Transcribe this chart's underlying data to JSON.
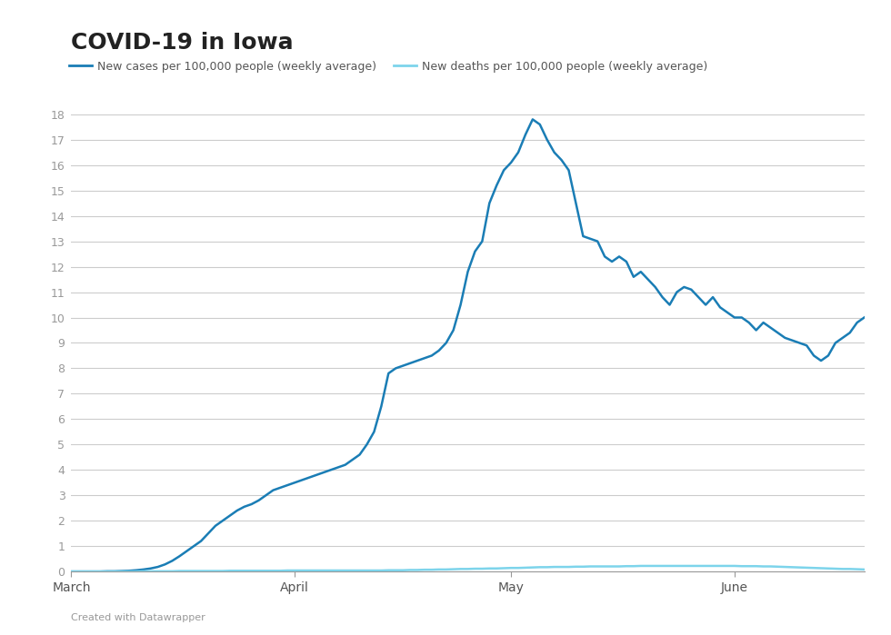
{
  "title": "COVID-19 in Iowa",
  "legend_cases": "New cases per 100,000 people (weekly average)",
  "legend_deaths": "New deaths per 100,000 people (weekly average)",
  "footer": "Created with Datawrapper",
  "cases_color": "#1a7db5",
  "deaths_color": "#7dd4eb",
  "background_color": "#ffffff",
  "ylim": [
    0,
    18
  ],
  "yticks": [
    0,
    1,
    2,
    3,
    4,
    5,
    6,
    7,
    8,
    9,
    10,
    11,
    12,
    13,
    14,
    15,
    16,
    17,
    18
  ],
  "xtick_labels": [
    "March",
    "April",
    "May",
    "June"
  ],
  "xtick_positions": [
    0,
    31,
    61,
    92
  ],
  "title_fontsize": 18,
  "axis_fontsize": 11,
  "cases_x": [
    0,
    1,
    2,
    3,
    4,
    5,
    6,
    7,
    8,
    9,
    10,
    11,
    12,
    13,
    14,
    15,
    16,
    17,
    18,
    19,
    20,
    21,
    22,
    23,
    24,
    25,
    26,
    27,
    28,
    29,
    30,
    31,
    32,
    33,
    34,
    35,
    36,
    37,
    38,
    39,
    40,
    41,
    42,
    43,
    44,
    45,
    46,
    47,
    48,
    49,
    50,
    51,
    52,
    53,
    54,
    55,
    56,
    57,
    58,
    59,
    60,
    61,
    62,
    63,
    64,
    65,
    66,
    67,
    68,
    69,
    70,
    71,
    72,
    73,
    74,
    75,
    76,
    77,
    78,
    79,
    80,
    81,
    82,
    83,
    84,
    85,
    86,
    87,
    88,
    89,
    90,
    91,
    92,
    93,
    94,
    95,
    96,
    97,
    98,
    99,
    100,
    101,
    102,
    103,
    104,
    105,
    106,
    107,
    108,
    109,
    110
  ],
  "cases_y": [
    0.0,
    0.0,
    0.0,
    0.0,
    0.0,
    0.01,
    0.01,
    0.02,
    0.03,
    0.05,
    0.08,
    0.12,
    0.18,
    0.28,
    0.42,
    0.6,
    0.8,
    1.0,
    1.2,
    1.5,
    1.8,
    2.0,
    2.2,
    2.4,
    2.55,
    2.65,
    2.8,
    3.0,
    3.2,
    3.3,
    3.4,
    3.5,
    3.6,
    3.7,
    3.8,
    3.9,
    4.0,
    4.1,
    4.2,
    4.4,
    4.6,
    5.0,
    5.5,
    6.5,
    7.8,
    8.0,
    8.1,
    8.2,
    8.3,
    8.4,
    8.5,
    8.7,
    9.0,
    9.5,
    10.5,
    11.8,
    12.6,
    13.0,
    14.5,
    15.2,
    15.8,
    16.1,
    16.5,
    17.2,
    17.8,
    17.6,
    17.0,
    16.5,
    16.2,
    15.8,
    14.5,
    13.2,
    13.1,
    13.0,
    12.4,
    12.2,
    12.4,
    12.2,
    11.6,
    11.8,
    11.5,
    11.2,
    10.8,
    10.5,
    11.0,
    11.2,
    11.1,
    10.8,
    10.5,
    10.8,
    10.4,
    10.2,
    10.0,
    10.0,
    9.8,
    9.5,
    9.8,
    9.6,
    9.4,
    9.2,
    9.1,
    9.0,
    8.9,
    8.5,
    8.3,
    8.5,
    9.0,
    9.2,
    9.4,
    9.8,
    10.0
  ],
  "deaths_x": [
    0,
    1,
    2,
    3,
    4,
    5,
    6,
    7,
    8,
    9,
    10,
    11,
    12,
    13,
    14,
    15,
    16,
    17,
    18,
    19,
    20,
    21,
    22,
    23,
    24,
    25,
    26,
    27,
    28,
    29,
    30,
    31,
    32,
    33,
    34,
    35,
    36,
    37,
    38,
    39,
    40,
    41,
    42,
    43,
    44,
    45,
    46,
    47,
    48,
    49,
    50,
    51,
    52,
    53,
    54,
    55,
    56,
    57,
    58,
    59,
    60,
    61,
    62,
    63,
    64,
    65,
    66,
    67,
    68,
    69,
    70,
    71,
    72,
    73,
    74,
    75,
    76,
    77,
    78,
    79,
    80,
    81,
    82,
    83,
    84,
    85,
    86,
    87,
    88,
    89,
    90,
    91,
    92,
    93,
    94,
    95,
    96,
    97,
    98,
    99,
    100,
    101,
    102,
    103,
    104,
    105,
    106,
    107,
    108,
    109,
    110
  ],
  "deaths_y": [
    0.0,
    0.0,
    0.0,
    0.0,
    0.0,
    0.0,
    0.0,
    0.0,
    0.0,
    0.0,
    0.01,
    0.01,
    0.01,
    0.01,
    0.01,
    0.02,
    0.02,
    0.02,
    0.02,
    0.02,
    0.02,
    0.02,
    0.03,
    0.03,
    0.03,
    0.03,
    0.03,
    0.03,
    0.03,
    0.03,
    0.04,
    0.04,
    0.04,
    0.04,
    0.04,
    0.04,
    0.04,
    0.04,
    0.04,
    0.04,
    0.04,
    0.04,
    0.04,
    0.04,
    0.05,
    0.05,
    0.05,
    0.06,
    0.06,
    0.07,
    0.07,
    0.08,
    0.08,
    0.09,
    0.1,
    0.1,
    0.11,
    0.11,
    0.12,
    0.12,
    0.13,
    0.14,
    0.14,
    0.15,
    0.16,
    0.17,
    0.17,
    0.18,
    0.18,
    0.18,
    0.19,
    0.19,
    0.2,
    0.2,
    0.2,
    0.2,
    0.2,
    0.21,
    0.21,
    0.22,
    0.22,
    0.22,
    0.22,
    0.22,
    0.22,
    0.22,
    0.22,
    0.22,
    0.22,
    0.22,
    0.22,
    0.22,
    0.22,
    0.21,
    0.21,
    0.21,
    0.2,
    0.2,
    0.19,
    0.18,
    0.17,
    0.16,
    0.15,
    0.14,
    0.13,
    0.12,
    0.11,
    0.1,
    0.1,
    0.09,
    0.08
  ]
}
